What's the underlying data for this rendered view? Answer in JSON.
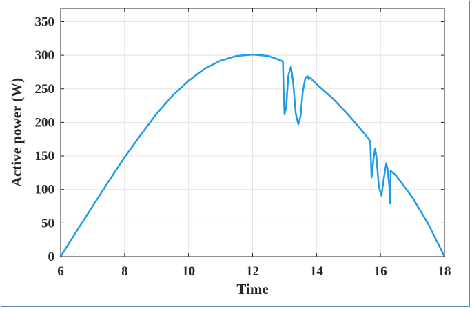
{
  "chart_data": {
    "type": "line",
    "xlabel": "Time",
    "ylabel": "Active power (W)",
    "xlim": [
      6,
      18
    ],
    "ylim": [
      0,
      370
    ],
    "xticks": [
      6,
      8,
      10,
      12,
      14,
      16,
      18
    ],
    "yticks": [
      0,
      50,
      100,
      150,
      200,
      250,
      300,
      350
    ],
    "grid": true,
    "line_color": "#1f9ae8",
    "series": [
      {
        "x": [
          6.0,
          6.5,
          7.0,
          7.5,
          8.0,
          8.5,
          9.0,
          9.5,
          10.0,
          10.5,
          11.0,
          11.5,
          12.0,
          12.5,
          12.95,
          12.97,
          13.0,
          13.05,
          13.12,
          13.2,
          13.27,
          13.35,
          13.43,
          13.5,
          13.57,
          13.65,
          13.72,
          13.76,
          13.8,
          13.85,
          14.0,
          14.5,
          15.0,
          15.5,
          15.68,
          15.7,
          15.72,
          15.78,
          15.83,
          15.87,
          15.95,
          16.03,
          16.1,
          16.18,
          16.22,
          16.28,
          16.3,
          16.32,
          16.5,
          17.0,
          17.5,
          18.0
        ],
        "y": [
          0,
          38,
          75,
          112,
          148,
          181,
          213,
          240,
          262,
          280,
          292,
          299,
          301,
          299,
          291,
          251,
          212,
          222,
          270,
          283,
          260,
          213,
          197,
          209,
          246,
          266,
          269,
          264,
          267,
          264,
          257,
          236,
          211,
          183,
          172,
          146,
          118,
          145,
          161,
          150,
          104,
          91,
          115,
          139,
          131,
          102,
          79,
          128,
          120,
          88,
          48,
          0
        ]
      }
    ]
  }
}
